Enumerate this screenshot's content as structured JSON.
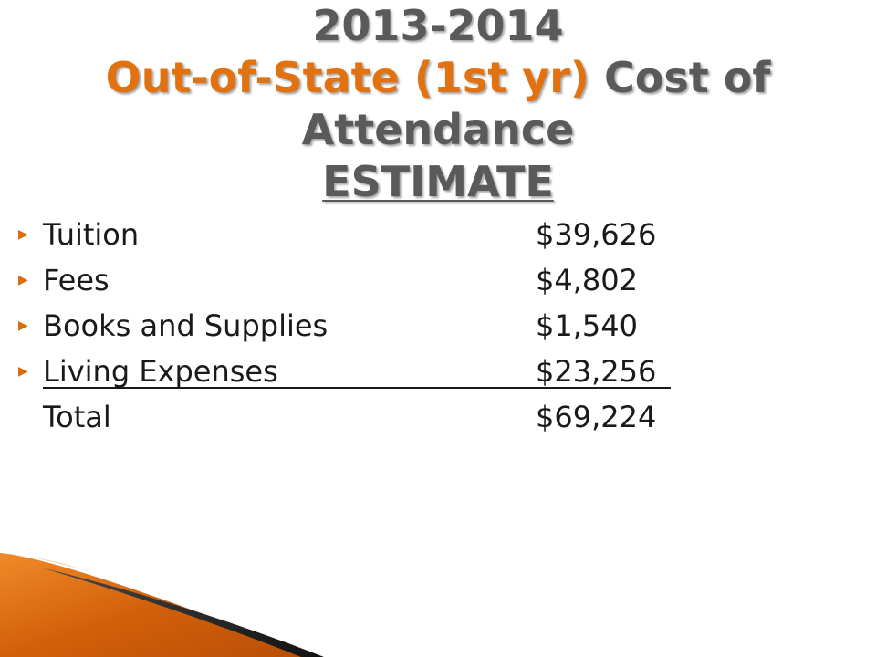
{
  "title": {
    "line1": "2013-2014",
    "line2_accent": "Out-of-State (1st yr)",
    "line2_rest": " Cost of",
    "line3": "Attendance",
    "line4": "ESTIMATE"
  },
  "items": [
    {
      "label": "Tuition",
      "amount": "$39,626",
      "bullet": true
    },
    {
      "label": "Fees",
      "amount": "$4,802",
      "bullet": true
    },
    {
      "label": "Books and Supplies",
      "amount": "$1,540",
      "bullet": true
    },
    {
      "label": "Living Expenses",
      "amount": "$23,256",
      "bullet": true
    },
    {
      "label": "Total",
      "amount": "$69,224",
      "bullet": false
    }
  ],
  "colors": {
    "accent": "#e2720f",
    "title_gray": "#5a5a5a",
    "text": "#1a1a1a"
  },
  "icons": {
    "bullet": "triangle-right-icon"
  }
}
